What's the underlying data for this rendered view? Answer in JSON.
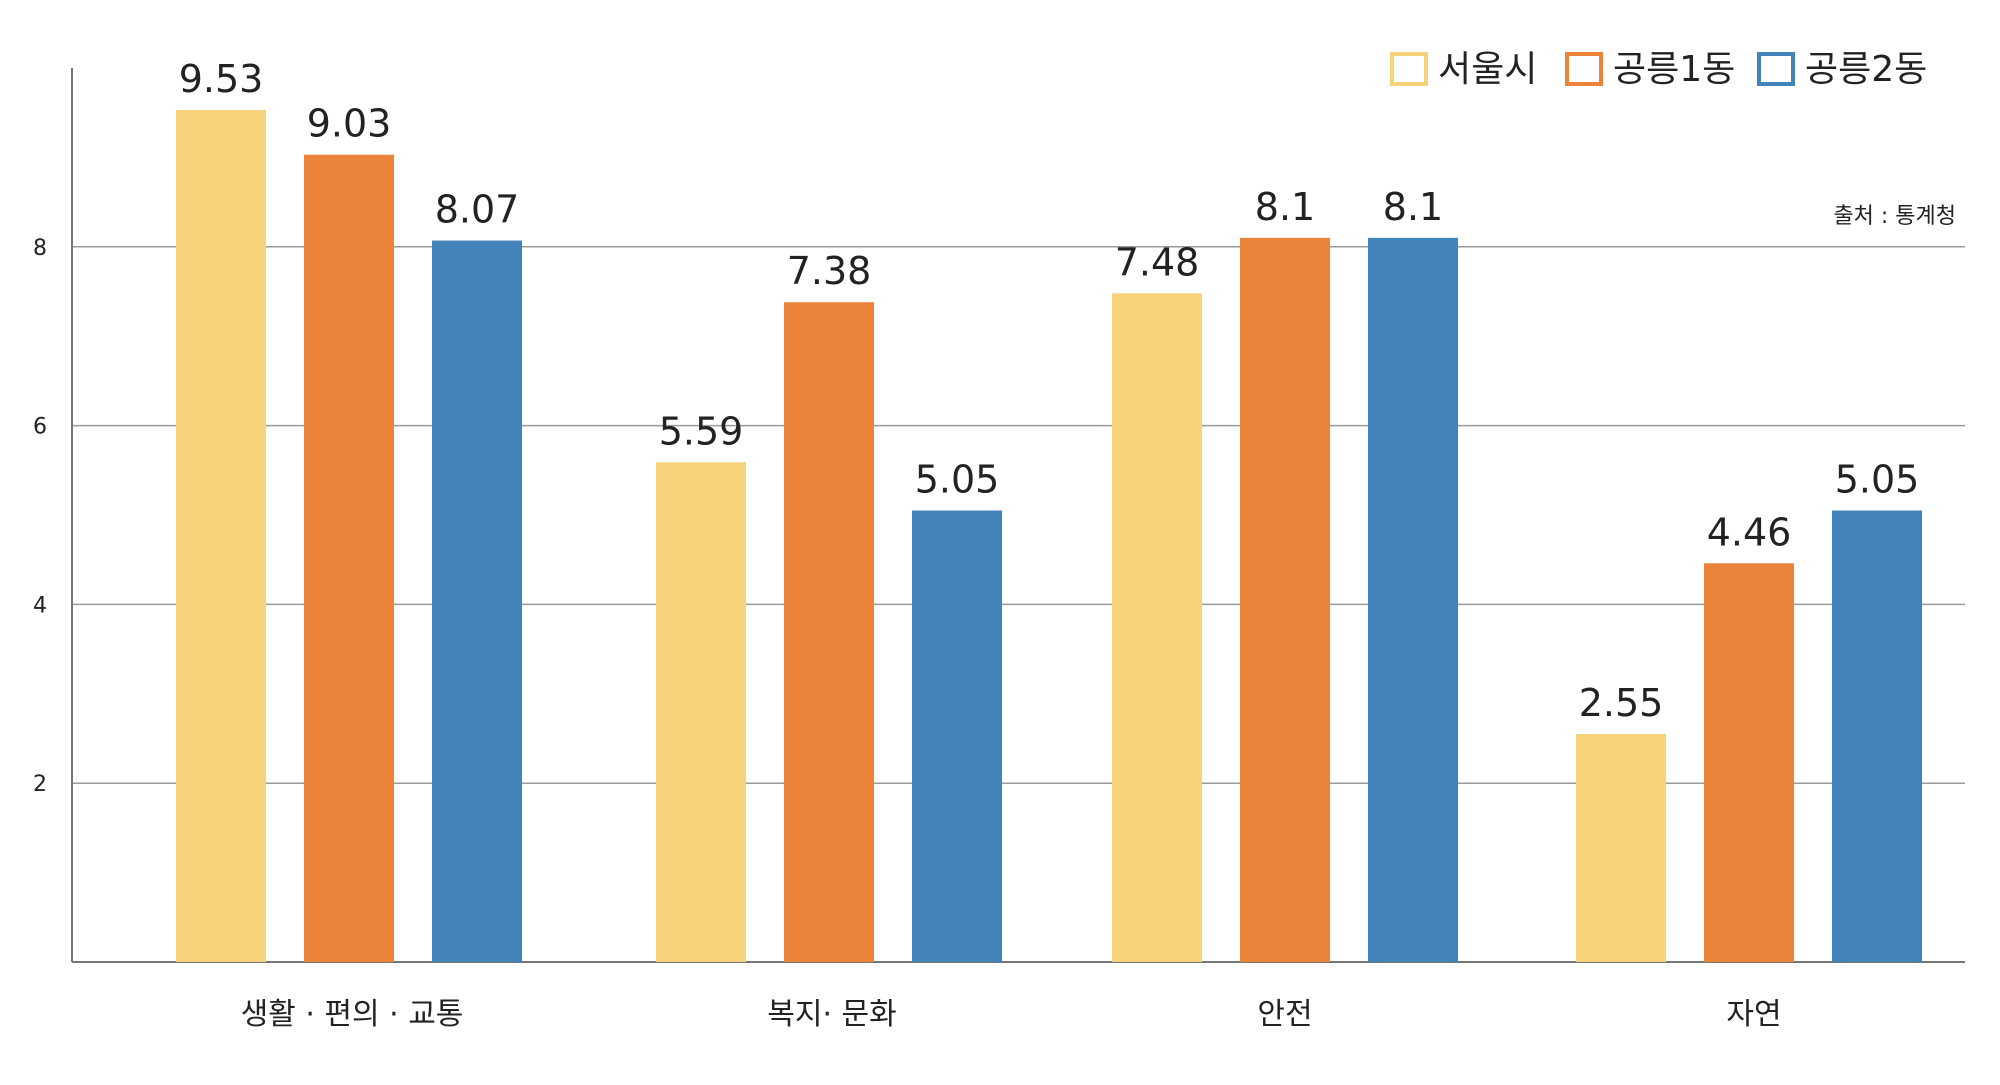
{
  "chart_data": {
    "type": "bar",
    "categories": [
      "생활 · 편의 · 교통",
      "복지· 문화",
      "안전",
      "자연"
    ],
    "series": [
      {
        "name": "서울시",
        "color": "#F6D27A",
        "values": [
          9.53,
          5.59,
          7.48,
          2.55
        ]
      },
      {
        "name": "공릉1동",
        "color": "#EC833A",
        "values": [
          9.03,
          7.38,
          8.1,
          4.46
        ]
      },
      {
        "name": "공릉2동",
        "color": "#4283B9",
        "values": [
          8.07,
          5.05,
          8.1,
          5.05
        ]
      }
    ],
    "value_labels": [
      [
        "9.53",
        "5.59",
        "7.48",
        "2.55"
      ],
      [
        "9.03",
        "7.38",
        "8.1",
        "4.46"
      ],
      [
        "8.07",
        "5.05",
        "8.1",
        "5.05"
      ]
    ],
    "y_ticks": [
      "2",
      "4",
      "6",
      "8"
    ],
    "ylim": [
      0,
      10
    ],
    "grid": true,
    "legend_position": "top-right",
    "source": "출처 : 통계청",
    "colors": {
      "grid": "#9A9A9A",
      "axis": "#777777",
      "text": "#222222"
    }
  }
}
